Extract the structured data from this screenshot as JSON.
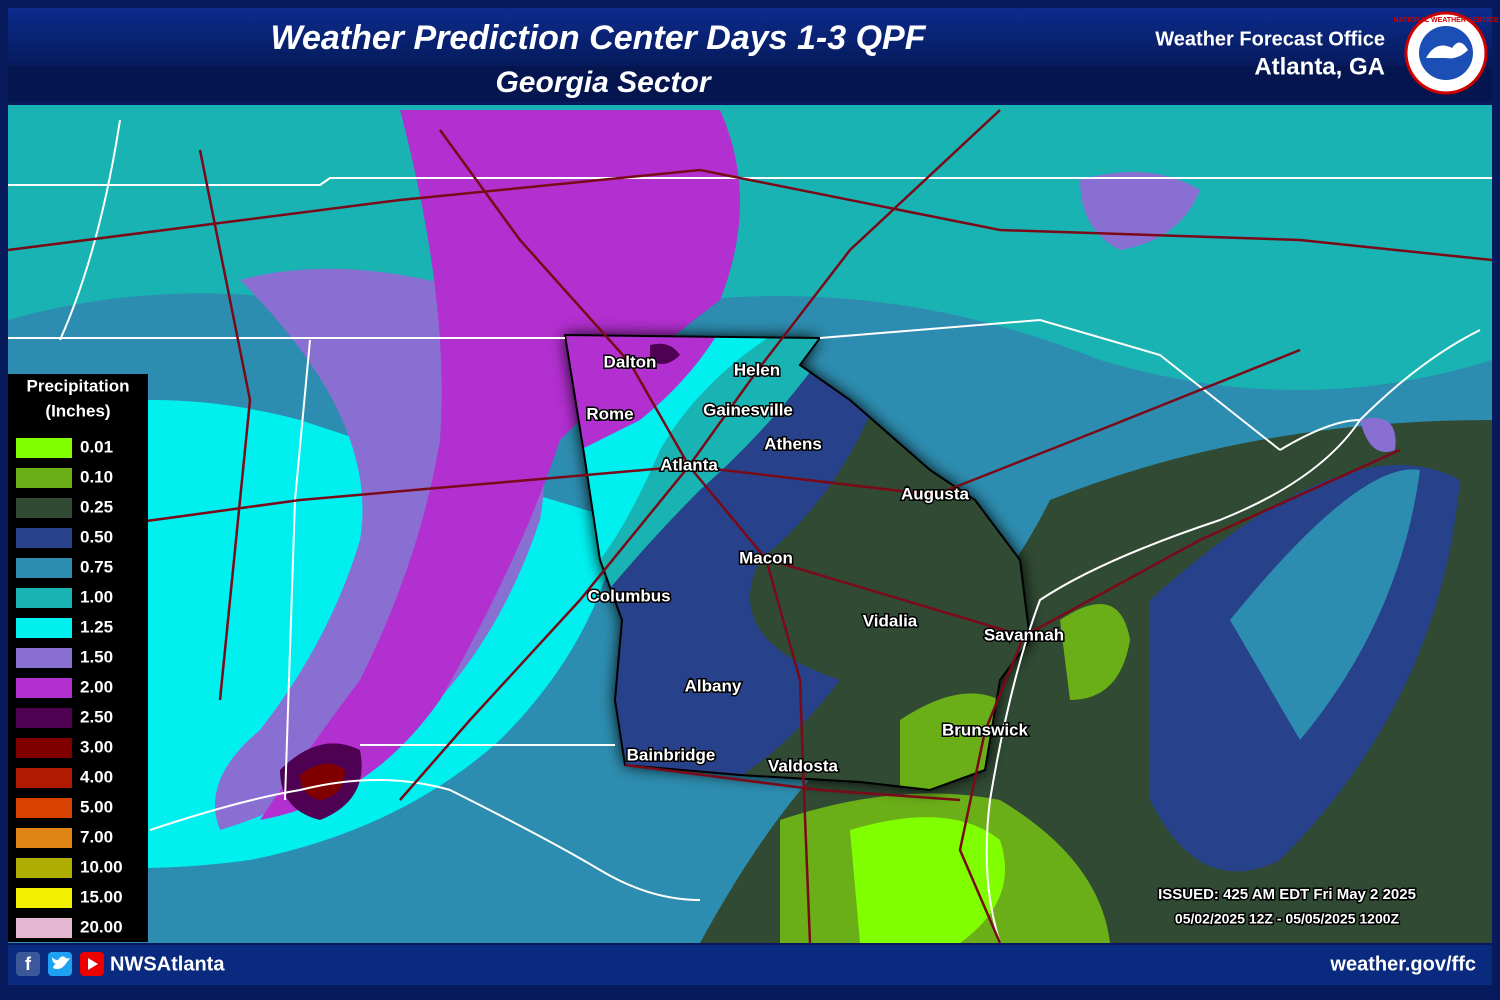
{
  "header": {
    "title": "Weather Prediction Center Days 1-3 QPF",
    "subtitle": "Georgia Sector",
    "office_line1": "Weather Forecast Office",
    "office_line2": "Atlanta, GA",
    "logo_text": "NATIONAL WEATHER SERVICE"
  },
  "legend": {
    "title_line1": "Precipitation",
    "title_line2": "(Inches)",
    "items": [
      {
        "label": "0.01",
        "color": "#80ff00"
      },
      {
        "label": "0.10",
        "color": "#6aae18"
      },
      {
        "label": "0.25",
        "color": "#304a34"
      },
      {
        "label": "0.50",
        "color": "#27418a"
      },
      {
        "label": "0.75",
        "color": "#2d8db0"
      },
      {
        "label": "1.00",
        "color": "#1ab3b3"
      },
      {
        "label": "1.25",
        "color": "#00f0f0"
      },
      {
        "label": "1.50",
        "color": "#8a6fd2"
      },
      {
        "label": "2.00",
        "color": "#b22fd0"
      },
      {
        "label": "2.50",
        "color": "#4e0052"
      },
      {
        "label": "3.00",
        "color": "#800000"
      },
      {
        "label": "4.00",
        "color": "#b01a00"
      },
      {
        "label": "5.00",
        "color": "#d84200"
      },
      {
        "label": "7.00",
        "color": "#e08414"
      },
      {
        "label": "10.00",
        "color": "#b0ae00"
      },
      {
        "label": "15.00",
        "color": "#f0f000"
      },
      {
        "label": "20.00",
        "color": "#e3b6d2"
      }
    ]
  },
  "cities": [
    "Dalton",
    "Helen",
    "Rome",
    "Gainesville",
    "Athens",
    "Atlanta",
    "Augusta",
    "Macon",
    "Columbus",
    "Vidalia",
    "Savannah",
    "Albany",
    "Brunswick",
    "Bainbridge",
    "Valdosta"
  ],
  "issued": {
    "line1": "ISSUED: 425 AM EDT Fri May 2 2025",
    "line2": "05/02/2025 12Z - 05/05/2025 1200Z"
  },
  "footer": {
    "social": "NWSAtlanta",
    "url": "weather.gov/ffc"
  }
}
